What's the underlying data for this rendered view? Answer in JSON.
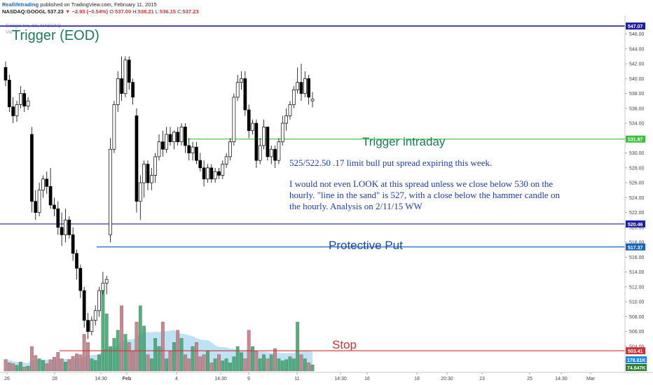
{
  "header": {
    "brand": "Reallifetrading",
    "published": "published on TradingView.com, February 11, 2015",
    "symbol": "NASDAQ:GOOGL",
    "last": "537.23",
    "change": "−2.93 (−0.54%)",
    "ohlc": {
      "o_label": "O:",
      "o": "537.00",
      "h_label": "H:",
      "h": "538.21",
      "l_label": "L:",
      "l": "536.15",
      "c_label": "C:",
      "c": "537.23"
    },
    "study_title": "Google Inc, 60, NASDAQ",
    "volume_label": "Vol"
  },
  "colors": {
    "candle_border": "#000000",
    "bull_fill": "#ffffff",
    "bear_fill": "#000000",
    "volume_up": "#3cab6e",
    "volume_down": "#c97b84",
    "volume_ma_area": "#a8d8f0",
    "trigger_eod": "#1c1cb0",
    "trigger_intraday": "#35c435",
    "line_520": "#1c1cb0",
    "protective_put": "#1565c0",
    "stop": "#d32f2f",
    "label_green": "#1b7a5a",
    "label_blue": "#1a4aa8",
    "label_red": "#d32f2f"
  },
  "chart_data": {
    "type": "candlestick",
    "interval": "60",
    "ylim": [
      500.5,
      548.5
    ],
    "y_ticks": [
      502,
      504,
      506,
      508,
      510,
      512,
      514,
      516,
      518,
      520,
      522,
      524,
      526,
      528,
      530,
      532,
      534,
      536,
      538,
      540,
      542,
      544,
      546
    ],
    "x_ticks": [
      "26",
      "28",
      "14:30",
      "Feb",
      "4",
      "14:30",
      "9",
      "11",
      "14:30",
      "16",
      "18",
      "20:30",
      "23",
      "25",
      "14:30",
      "Mar"
    ],
    "grid": false,
    "candles": [
      {
        "o": 541.5,
        "h": 542.3,
        "l": 539.0,
        "c": 539.8
      },
      {
        "o": 539.8,
        "h": 540.5,
        "l": 535.5,
        "c": 536.2
      },
      {
        "o": 536.2,
        "h": 537.5,
        "l": 534.0,
        "c": 535.0
      },
      {
        "o": 535.0,
        "h": 537.0,
        "l": 534.2,
        "c": 536.5
      },
      {
        "o": 536.5,
        "h": 539.0,
        "l": 536.0,
        "c": 538.0
      },
      {
        "o": 538.0,
        "h": 538.5,
        "l": 535.5,
        "c": 536.3
      },
      {
        "o": 536.3,
        "h": 537.5,
        "l": 535.8,
        "c": 537.0
      },
      {
        "o": 532.5,
        "h": 533.5,
        "l": 522.0,
        "c": 523.5
      },
      {
        "o": 523.5,
        "h": 525.0,
        "l": 521.0,
        "c": 522.0
      },
      {
        "o": 522.0,
        "h": 526.0,
        "l": 521.5,
        "c": 525.0
      },
      {
        "o": 525.0,
        "h": 527.0,
        "l": 524.0,
        "c": 526.5
      },
      {
        "o": 526.5,
        "h": 527.5,
        "l": 524.5,
        "c": 525.5
      },
      {
        "o": 525.5,
        "h": 528.0,
        "l": 522.5,
        "c": 523.0
      },
      {
        "o": 523.0,
        "h": 524.0,
        "l": 521.5,
        "c": 522.5
      },
      {
        "o": 522.5,
        "h": 523.5,
        "l": 519.0,
        "c": 520.0
      },
      {
        "o": 520.0,
        "h": 522.0,
        "l": 517.5,
        "c": 519.0
      },
      {
        "o": 519.0,
        "h": 522.5,
        "l": 518.0,
        "c": 521.0
      },
      {
        "o": 521.0,
        "h": 521.5,
        "l": 518.5,
        "c": 519.0
      },
      {
        "o": 519.0,
        "h": 520.0,
        "l": 515.5,
        "c": 516.5
      },
      {
        "o": 516.5,
        "h": 517.0,
        "l": 513.0,
        "c": 514.5
      },
      {
        "o": 514.5,
        "h": 515.0,
        "l": 510.5,
        "c": 511.5
      },
      {
        "o": 511.5,
        "h": 512.0,
        "l": 506.5,
        "c": 507.5
      },
      {
        "o": 507.5,
        "h": 508.5,
        "l": 505.0,
        "c": 506.0
      },
      {
        "o": 506.0,
        "h": 508.0,
        "l": 505.5,
        "c": 507.5
      },
      {
        "o": 507.5,
        "h": 509.5,
        "l": 506.8,
        "c": 508.8
      },
      {
        "o": 508.8,
        "h": 512.0,
        "l": 508.0,
        "c": 511.5
      },
      {
        "o": 511.5,
        "h": 514.0,
        "l": 511.0,
        "c": 512.5
      },
      {
        "o": 512.5,
        "h": 513.5,
        "l": 511.0,
        "c": 513.0
      },
      {
        "o": 519.0,
        "h": 532.0,
        "l": 518.0,
        "c": 530.5
      },
      {
        "o": 530.5,
        "h": 537.0,
        "l": 530.0,
        "c": 536.5
      },
      {
        "o": 536.5,
        "h": 541.0,
        "l": 535.5,
        "c": 540.0
      },
      {
        "o": 540.0,
        "h": 543.0,
        "l": 537.0,
        "c": 538.0
      },
      {
        "o": 538.0,
        "h": 543.0,
        "l": 537.5,
        "c": 542.5
      },
      {
        "o": 542.5,
        "h": 543.0,
        "l": 538.5,
        "c": 539.5
      },
      {
        "o": 539.5,
        "h": 540.0,
        "l": 536.5,
        "c": 537.5
      },
      {
        "o": 535.0,
        "h": 536.0,
        "l": 522.0,
        "c": 523.5
      },
      {
        "o": 523.5,
        "h": 527.0,
        "l": 521.0,
        "c": 526.0
      },
      {
        "o": 526.0,
        "h": 529.0,
        "l": 524.0,
        "c": 528.5
      },
      {
        "o": 528.5,
        "h": 529.0,
        "l": 525.0,
        "c": 526.0
      },
      {
        "o": 526.0,
        "h": 528.0,
        "l": 525.0,
        "c": 527.0
      },
      {
        "o": 527.0,
        "h": 530.0,
        "l": 526.0,
        "c": 529.5
      },
      {
        "o": 529.5,
        "h": 532.5,
        "l": 529.0,
        "c": 531.5
      },
      {
        "o": 531.5,
        "h": 533.0,
        "l": 529.5,
        "c": 530.5
      },
      {
        "o": 530.5,
        "h": 533.5,
        "l": 530.0,
        "c": 532.5
      },
      {
        "o": 532.5,
        "h": 533.5,
        "l": 531.0,
        "c": 531.5
      },
      {
        "o": 531.5,
        "h": 533.0,
        "l": 530.5,
        "c": 532.8
      },
      {
        "o": 532.8,
        "h": 533.5,
        "l": 531.0,
        "c": 531.5
      },
      {
        "o": 531.5,
        "h": 534.0,
        "l": 531.0,
        "c": 533.5
      },
      {
        "o": 533.5,
        "h": 534.0,
        "l": 530.0,
        "c": 531.0
      },
      {
        "o": 531.0,
        "h": 532.0,
        "l": 529.0,
        "c": 530.0
      },
      {
        "o": 530.0,
        "h": 531.5,
        "l": 529.0,
        "c": 530.8
      },
      {
        "o": 530.8,
        "h": 531.5,
        "l": 528.5,
        "c": 529.0
      },
      {
        "o": 529.0,
        "h": 530.0,
        "l": 527.5,
        "c": 528.0
      },
      {
        "o": 528.0,
        "h": 529.0,
        "l": 525.5,
        "c": 526.5
      },
      {
        "o": 526.5,
        "h": 528.5,
        "l": 526.0,
        "c": 528.0
      },
      {
        "o": 528.0,
        "h": 528.5,
        "l": 526.0,
        "c": 526.5
      },
      {
        "o": 526.5,
        "h": 528.0,
        "l": 526.0,
        "c": 527.5
      },
      {
        "o": 527.5,
        "h": 528.0,
        "l": 526.5,
        "c": 527.0
      },
      {
        "o": 527.0,
        "h": 529.0,
        "l": 526.5,
        "c": 528.5
      },
      {
        "o": 528.5,
        "h": 530.0,
        "l": 528.0,
        "c": 529.5
      },
      {
        "o": 529.5,
        "h": 532.0,
        "l": 529.0,
        "c": 531.5
      },
      {
        "o": 531.5,
        "h": 538.0,
        "l": 531.0,
        "c": 537.5
      },
      {
        "o": 537.5,
        "h": 540.5,
        "l": 537.0,
        "c": 539.5
      },
      {
        "o": 539.5,
        "h": 541.0,
        "l": 538.5,
        "c": 540.0
      },
      {
        "o": 540.0,
        "h": 541.0,
        "l": 535.0,
        "c": 535.8
      },
      {
        "o": 535.8,
        "h": 536.5,
        "l": 532.0,
        "c": 533.0
      },
      {
        "o": 533.0,
        "h": 534.5,
        "l": 532.5,
        "c": 534.0
      },
      {
        "o": 534.0,
        "h": 534.5,
        "l": 528.0,
        "c": 529.0
      },
      {
        "o": 529.0,
        "h": 532.0,
        "l": 528.5,
        "c": 531.0
      },
      {
        "o": 531.0,
        "h": 534.5,
        "l": 530.5,
        "c": 533.5
      },
      {
        "o": 533.5,
        "h": 533.5,
        "l": 529.0,
        "c": 529.5
      },
      {
        "o": 529.5,
        "h": 531.0,
        "l": 528.5,
        "c": 530.5
      },
      {
        "o": 530.5,
        "h": 531.0,
        "l": 528.0,
        "c": 529.0
      },
      {
        "o": 529.0,
        "h": 532.0,
        "l": 528.5,
        "c": 531.5
      },
      {
        "o": 531.5,
        "h": 535.0,
        "l": 531.0,
        "c": 534.0
      },
      {
        "o": 534.0,
        "h": 536.0,
        "l": 533.0,
        "c": 535.0
      },
      {
        "o": 535.0,
        "h": 537.0,
        "l": 534.5,
        "c": 536.5
      },
      {
        "o": 536.5,
        "h": 539.0,
        "l": 536.0,
        "c": 538.5
      },
      {
        "o": 538.5,
        "h": 541.5,
        "l": 538.0,
        "c": 539.5
      },
      {
        "o": 539.5,
        "h": 542.0,
        "l": 537.0,
        "c": 538.0
      },
      {
        "o": 538.0,
        "h": 541.0,
        "l": 537.5,
        "c": 540.0
      },
      {
        "o": 540.0,
        "h": 540.5,
        "l": 536.5,
        "c": 537.5
      },
      {
        "o": 537.0,
        "h": 538.21,
        "l": 536.15,
        "c": 537.23
      }
    ],
    "volume": {
      "values": [
        28,
        20,
        18,
        14,
        22,
        10,
        12,
        60,
        38,
        30,
        26,
        18,
        28,
        34,
        46,
        30,
        22,
        28,
        36,
        42,
        40,
        90,
        70,
        30,
        26,
        40,
        210,
        140,
        60,
        80,
        100,
        160,
        90,
        70,
        50,
        120,
        160,
        110,
        40,
        30,
        80,
        60,
        120,
        30,
        50,
        70,
        100,
        80,
        40,
        30,
        60,
        70,
        35,
        40,
        50,
        20,
        30,
        40,
        25,
        30,
        20,
        35,
        60,
        45,
        30,
        100,
        60,
        50,
        30,
        40,
        30,
        40,
        55,
        30,
        25,
        28,
        35,
        30,
        120,
        40,
        30,
        20,
        15
      ],
      "ma_area": true,
      "last_volume_label": "178.81K",
      "ma_label": "74.647K"
    },
    "levels": [
      {
        "name": "Trigger (EOD)",
        "value": 547.07,
        "price_label": "547.07"
      },
      {
        "name": "Trigger intraday",
        "value": 531.87,
        "price_label": "531.87"
      },
      {
        "name": "",
        "value": 520.46,
        "price_label": "520.46"
      },
      {
        "name": "Protective Put",
        "value": 517.37,
        "price_label": "517.37"
      },
      {
        "name": "Stop",
        "value": 503.41,
        "price_label": "503.41"
      }
    ],
    "annotation": {
      "line1": "525/522.50 .17 limit bull put spread expiring this week.",
      "line2": "I would not even LOOK at this spread unless we close below 530 on the",
      "line3": "hourly. \"line in the sand\" is 527, with a close below the hammer candle on",
      "line4": "the hourly. Analysis on 2/11/15 WW"
    }
  }
}
